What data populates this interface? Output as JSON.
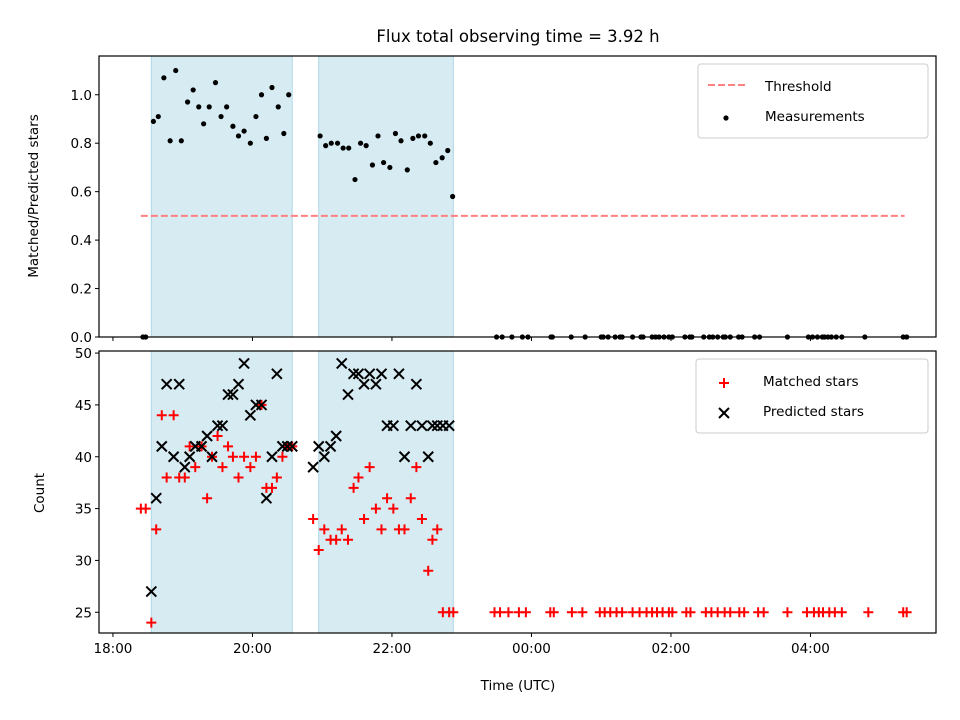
{
  "chart_data": [
    {
      "type": "scatter",
      "panel": "top",
      "title": "Flux total observing time = 3.92 h",
      "xlabel": "",
      "ylabel": "Matched/Predicted stars",
      "xlim_hours": [
        17.8,
        29.8
      ],
      "ylim": [
        0,
        1.16
      ],
      "yticks": [
        0.0,
        0.2,
        0.4,
        0.6,
        0.8,
        1.0
      ],
      "ytick_labels": [
        "0.0",
        "0.2",
        "0.4",
        "0.6",
        "0.8",
        "1.0"
      ],
      "shaded_intervals_hours": [
        [
          18.55,
          20.57
        ],
        [
          20.95,
          22.88
        ]
      ],
      "threshold": {
        "name": "Threshold",
        "value": 0.5,
        "x_range_hours": [
          18.4,
          29.35
        ],
        "color": "#ff8080"
      },
      "legend": [
        "Threshold",
        "Measurements"
      ],
      "series": [
        {
          "name": "Measurements",
          "marker": "dot",
          "color": "#000000",
          "x_hours": [
            18.43,
            18.47,
            18.58,
            18.65,
            18.73,
            18.82,
            18.9,
            18.98,
            19.07,
            19.15,
            19.23,
            19.3,
            19.38,
            19.47,
            19.55,
            19.63,
            19.72,
            19.8,
            19.88,
            19.97,
            20.05,
            20.13,
            20.2,
            20.28,
            20.37,
            20.45,
            20.52,
            20.97,
            21.05,
            21.13,
            21.22,
            21.3,
            21.38,
            21.47,
            21.55,
            21.63,
            21.72,
            21.8,
            21.88,
            21.97,
            22.05,
            22.13,
            22.22,
            22.3,
            22.38,
            22.47,
            22.55,
            22.63,
            22.72,
            22.8,
            22.87,
            23.5,
            23.58,
            23.72,
            23.87,
            23.95,
            24.28,
            24.3,
            24.57,
            24.77,
            25.0,
            25.03,
            25.1,
            25.2,
            25.27,
            25.3,
            25.45,
            25.57,
            25.6,
            25.73,
            25.78,
            25.83,
            25.9,
            25.97,
            26.02,
            26.2,
            26.27,
            26.3,
            26.47,
            26.55,
            26.6,
            26.67,
            26.75,
            26.78,
            26.85,
            26.97,
            27.02,
            27.2,
            27.27,
            27.67,
            27.97,
            28.03,
            28.1,
            28.17,
            28.2,
            28.25,
            28.3,
            28.37,
            28.45,
            28.78,
            29.33,
            29.38
          ],
          "values": [
            0,
            0,
            0.89,
            0.91,
            1.07,
            0.81,
            1.1,
            0.81,
            0.97,
            1.02,
            0.95,
            0.88,
            0.95,
            1.05,
            0.91,
            0.95,
            0.87,
            0.83,
            0.85,
            0.8,
            0.91,
            1.0,
            0.82,
            1.03,
            0.95,
            0.84,
            1.0,
            0.83,
            0.79,
            0.8,
            0.8,
            0.78,
            0.78,
            0.65,
            0.8,
            0.79,
            0.71,
            0.83,
            0.72,
            0.7,
            0.84,
            0.81,
            0.69,
            0.82,
            0.83,
            0.83,
            0.8,
            0.72,
            0.74,
            0.77,
            0.58,
            0,
            0,
            0,
            0,
            0,
            0,
            0,
            0,
            0,
            0,
            0,
            0,
            0,
            0,
            0,
            0,
            0,
            0,
            0,
            0,
            0,
            0,
            0,
            0,
            0,
            0,
            0,
            0,
            0,
            0,
            0,
            0,
            0,
            0,
            0,
            0,
            0,
            0,
            0,
            0,
            0,
            0,
            0,
            0,
            0,
            0,
            0,
            0,
            0,
            0,
            0
          ]
        }
      ]
    },
    {
      "type": "scatter",
      "panel": "bottom",
      "title": "",
      "xlabel": "Time (UTC)",
      "ylabel": "Count",
      "xlim_hours": [
        17.8,
        29.8
      ],
      "ylim": [
        23,
        50.2
      ],
      "yticks": [
        25,
        30,
        35,
        40,
        45,
        50
      ],
      "ytick_labels": [
        "25",
        "30",
        "35",
        "40",
        "45",
        "50"
      ],
      "xticks_hours": [
        18,
        20,
        22,
        24,
        26,
        28
      ],
      "xtick_labels": [
        "18:00",
        "20:00",
        "22:00",
        "00:00",
        "02:00",
        "04:00"
      ],
      "shaded_intervals_hours": [
        [
          18.55,
          20.57
        ],
        [
          20.95,
          22.88
        ]
      ],
      "legend": [
        "Matched stars",
        "Predicted stars"
      ],
      "series": [
        {
          "name": "Matched stars",
          "marker": "plus",
          "color": "#ff0000",
          "x_hours": [
            18.4,
            18.47,
            18.55,
            18.62,
            18.7,
            18.77,
            18.87,
            18.95,
            19.03,
            19.1,
            19.18,
            19.27,
            19.35,
            19.42,
            19.5,
            19.57,
            19.65,
            19.72,
            19.8,
            19.88,
            19.97,
            20.05,
            20.13,
            20.2,
            20.28,
            20.35,
            20.43,
            20.5,
            20.57,
            20.87,
            20.95,
            21.03,
            21.12,
            21.2,
            21.28,
            21.37,
            21.45,
            21.52,
            21.6,
            21.68,
            21.77,
            21.85,
            21.93,
            22.02,
            22.1,
            22.18,
            22.27,
            22.35,
            22.43,
            22.52,
            22.58,
            22.65,
            22.73,
            22.82,
            22.88,
            23.47,
            23.55,
            23.67,
            23.82,
            23.92,
            24.27,
            24.32,
            24.58,
            24.73,
            24.98,
            25.05,
            25.13,
            25.22,
            25.3,
            25.45,
            25.55,
            25.65,
            25.73,
            25.8,
            25.88,
            25.97,
            26.02,
            26.22,
            26.28,
            26.5,
            26.58,
            26.67,
            26.77,
            26.85,
            26.98,
            27.05,
            27.25,
            27.33,
            27.67,
            27.95,
            28.05,
            28.12,
            28.18,
            28.27,
            28.35,
            28.45,
            28.83,
            29.33,
            29.38
          ],
          "values": [
            35,
            35,
            24,
            33,
            44,
            38,
            44,
            38,
            38,
            41,
            39,
            41,
            36,
            40,
            42,
            39,
            41,
            40,
            38,
            40,
            39,
            40,
            45,
            37,
            37,
            38,
            40,
            41,
            41,
            34,
            31,
            33,
            32,
            32,
            33,
            32,
            37,
            38,
            34,
            39,
            35,
            33,
            36,
            35,
            33,
            33,
            36,
            39,
            34,
            29,
            32,
            33,
            25,
            25,
            25,
            25,
            25,
            25,
            25,
            25,
            25,
            25,
            25,
            25,
            25,
            25,
            25,
            25,
            25,
            25,
            25,
            25,
            25,
            25,
            25,
            25,
            25,
            25,
            25,
            25,
            25,
            25,
            25,
            25,
            25,
            25,
            25,
            25,
            25,
            25,
            25,
            25,
            25,
            25,
            25,
            25,
            25,
            25,
            25
          ]
        },
        {
          "name": "Predicted stars",
          "marker": "x",
          "color": "#000000",
          "x_hours": [
            18.55,
            18.62,
            18.7,
            18.77,
            18.87,
            18.95,
            19.03,
            19.1,
            19.18,
            19.27,
            19.35,
            19.42,
            19.5,
            19.57,
            19.65,
            19.72,
            19.8,
            19.88,
            19.97,
            20.05,
            20.13,
            20.2,
            20.28,
            20.35,
            20.43,
            20.5,
            20.57,
            20.87,
            20.95,
            21.03,
            21.12,
            21.2,
            21.28,
            21.37,
            21.45,
            21.52,
            21.6,
            21.68,
            21.77,
            21.85,
            21.93,
            22.02,
            22.1,
            22.18,
            22.27,
            22.35,
            22.43,
            22.52,
            22.58,
            22.65,
            22.73,
            22.82
          ],
          "values": [
            27,
            36,
            41,
            47,
            40,
            47,
            39,
            40,
            41,
            41,
            42,
            40,
            43,
            43,
            46,
            46,
            47,
            49,
            44,
            45,
            45,
            36,
            40,
            48,
            41,
            41,
            41,
            39,
            41,
            40,
            41,
            42,
            49,
            46,
            48,
            48,
            47,
            48,
            47,
            48,
            43,
            43,
            48,
            40,
            43,
            47,
            43,
            40,
            43,
            43,
            43,
            43
          ]
        }
      ]
    }
  ]
}
